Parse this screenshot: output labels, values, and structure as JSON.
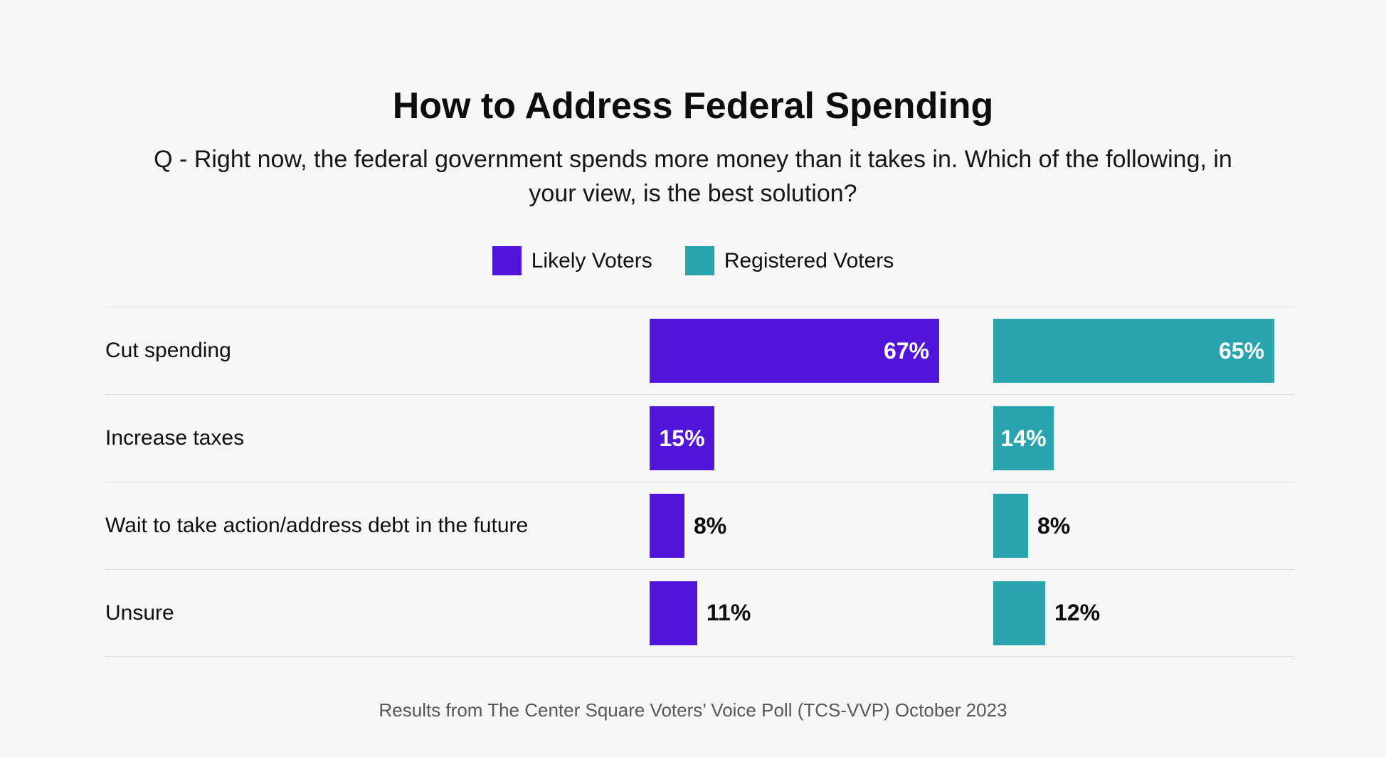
{
  "chart_data": {
    "type": "bar",
    "orientation": "horizontal",
    "title": "How to Address Federal Spending",
    "subtitle": "Q - Right now, the federal government spends more money than it takes in. Which of the following, in your view, is the best solution?",
    "subtitle_lines": [
      "Q - Right now, the federal government spends more money than it takes in. Which of the following, in",
      "your view, is the best solution?"
    ],
    "categories": [
      "Cut spending",
      "Increase taxes",
      "Wait to take action/address debt in the future",
      "Unsure"
    ],
    "series": [
      {
        "name": "Likely Voters",
        "color": "#5014db",
        "values": [
          67,
          15,
          8,
          11
        ],
        "labels": [
          "67%",
          "15%",
          "8%",
          "11%"
        ]
      },
      {
        "name": "Registered Voters",
        "color": "#29a4af",
        "values": [
          65,
          14,
          8,
          12
        ],
        "labels": [
          "65%",
          "14%",
          "8%",
          "12%"
        ]
      }
    ],
    "value_suffix": "%",
    "xlim": [
      0,
      100
    ],
    "legend_position": "top-center",
    "grid": "horizontal-row-dividers",
    "source": "Results from The Center Square Voters’ Voice Poll (TCS-VVP) October 2023"
  },
  "colors": {
    "background": "#f7f7f7",
    "divider": "#dbdbdb",
    "likely_voters": "#5014db",
    "registered_voters": "#29a4af",
    "value_label_inside": "#ffffff",
    "value_label_outside": "#0d0d0d"
  }
}
